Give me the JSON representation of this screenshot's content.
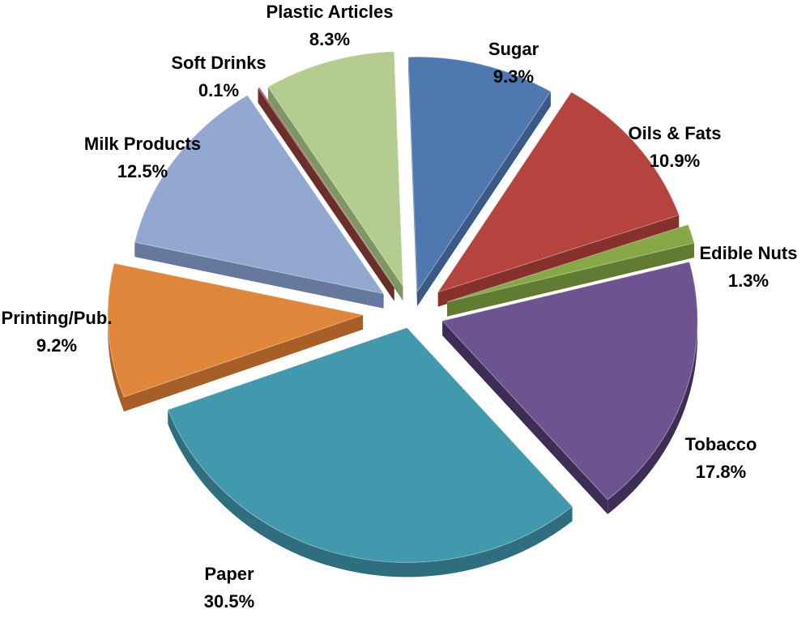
{
  "chart_data": {
    "type": "pie",
    "style": "exploded 3D pie",
    "categories": [
      "Sugar",
      "Oils & Fats",
      "Edible Nuts",
      "Tobacco",
      "Paper",
      "Printing/Pub.",
      "Milk Products",
      "Soft Drinks",
      "Plastic Articles"
    ],
    "values": [
      9.3,
      10.9,
      1.3,
      17.8,
      30.5,
      9.2,
      12.5,
      0.1,
      8.3
    ],
    "value_labels": [
      "9.3%",
      "10.9%",
      "1.3%",
      "17.8%",
      "30.5%",
      "9.2%",
      "12.5%",
      "0.1%",
      "8.3%"
    ],
    "colors": [
      "#4f78b0",
      "#b5443f",
      "#86a846",
      "#6e5391",
      "#4298ad",
      "#e0863a",
      "#93a8d1",
      "#a4514c",
      "#b5cc90"
    ],
    "side_colors": [
      "#3a5985",
      "#87312d",
      "#627b33",
      "#3e2d54",
      "#2e6e7e",
      "#a75f27",
      "#66789b",
      "#6b2f2b",
      "#7f9563"
    ],
    "legend": "none",
    "title": ""
  }
}
